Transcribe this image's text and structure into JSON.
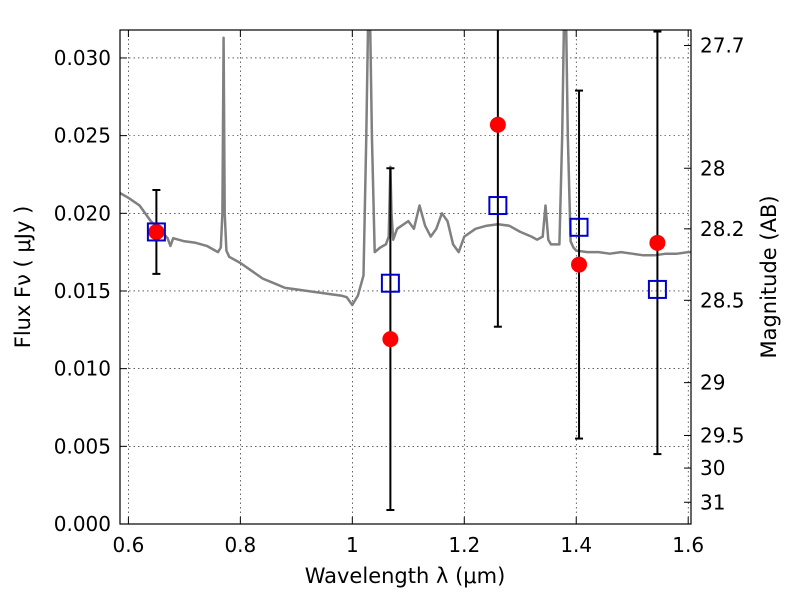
{
  "chart_data": {
    "type": "scatter",
    "xlabel": "Wavelength  λ (μm)",
    "ylabel": "Flux  Fν  ( μJy )",
    "y2label": "Magnitude (AB)",
    "xlim": [
      0.585,
      1.605
    ],
    "ylim": [
      0.0,
      0.0318
    ],
    "grid": true,
    "x_ticks": [
      {
        "v": 0.6,
        "label": "0.6"
      },
      {
        "v": 0.8,
        "label": "0.8"
      },
      {
        "v": 1.0,
        "label": "1"
      },
      {
        "v": 1.2,
        "label": "1.2"
      },
      {
        "v": 1.4,
        "label": "1.4"
      },
      {
        "v": 1.6,
        "label": "1.6"
      }
    ],
    "y_ticks": [
      {
        "v": 0.0,
        "label": "0.000"
      },
      {
        "v": 0.005,
        "label": "0.005"
      },
      {
        "v": 0.01,
        "label": "0.010"
      },
      {
        "v": 0.015,
        "label": "0.015"
      },
      {
        "v": 0.02,
        "label": "0.020"
      },
      {
        "v": 0.025,
        "label": "0.025"
      },
      {
        "v": 0.03,
        "label": "0.030"
      }
    ],
    "y2_ticks": [
      {
        "flux": 0.0308,
        "label": "27.7"
      },
      {
        "flux": 0.0229,
        "label": "28"
      },
      {
        "flux": 0.019,
        "label": "28.2"
      },
      {
        "flux": 0.0144,
        "label": "28.5"
      },
      {
        "flux": 0.0091,
        "label": "29"
      },
      {
        "flux": 0.0057,
        "label": "29.5"
      },
      {
        "flux": 0.0036,
        "label": "30"
      },
      {
        "flux": 0.0014,
        "label": "31"
      }
    ],
    "series": [
      {
        "kind": "line",
        "color": "#808080",
        "x": [
          0.585,
          0.6,
          0.62,
          0.64,
          0.66,
          0.67,
          0.675,
          0.68,
          0.7,
          0.72,
          0.74,
          0.75,
          0.76,
          0.765,
          0.768,
          0.77,
          0.772,
          0.775,
          0.78,
          0.8,
          0.82,
          0.84,
          0.86,
          0.88,
          0.9,
          0.92,
          0.94,
          0.96,
          0.98,
          0.99,
          1.0,
          1.01,
          1.02,
          1.025,
          1.028,
          1.032,
          1.035,
          1.04,
          1.05,
          1.06,
          1.065,
          1.068,
          1.07,
          1.073,
          1.08,
          1.1,
          1.11,
          1.12,
          1.13,
          1.14,
          1.15,
          1.16,
          1.17,
          1.18,
          1.19,
          1.2,
          1.22,
          1.24,
          1.26,
          1.28,
          1.3,
          1.32,
          1.33,
          1.34,
          1.345,
          1.35,
          1.355,
          1.37,
          1.375,
          1.378,
          1.382,
          1.385,
          1.39,
          1.395,
          1.4,
          1.42,
          1.44,
          1.46,
          1.48,
          1.5,
          1.52,
          1.54,
          1.56,
          1.58,
          1.6,
          1.605
        ],
        "y": [
          0.0213,
          0.021,
          0.0205,
          0.0195,
          0.0188,
          0.0184,
          0.0179,
          0.0184,
          0.0182,
          0.0181,
          0.0179,
          0.0177,
          0.0175,
          0.0178,
          0.02,
          0.0313,
          0.02,
          0.0176,
          0.0172,
          0.0168,
          0.0163,
          0.0158,
          0.0155,
          0.0152,
          0.0151,
          0.015,
          0.0149,
          0.0148,
          0.0147,
          0.0146,
          0.0141,
          0.0147,
          0.016,
          0.025,
          0.032,
          0.032,
          0.025,
          0.0175,
          0.0178,
          0.018,
          0.0185,
          0.023,
          0.02,
          0.0183,
          0.019,
          0.0195,
          0.019,
          0.0205,
          0.0192,
          0.0185,
          0.019,
          0.02,
          0.0195,
          0.018,
          0.0175,
          0.0185,
          0.019,
          0.0192,
          0.0193,
          0.0192,
          0.0188,
          0.0185,
          0.0183,
          0.0185,
          0.0205,
          0.0183,
          0.018,
          0.018,
          0.025,
          0.032,
          0.032,
          0.025,
          0.0182,
          0.0178,
          0.0176,
          0.0175,
          0.0175,
          0.0174,
          0.0175,
          0.0174,
          0.0173,
          0.0173,
          0.0174,
          0.0174,
          0.0175,
          0.0175
        ]
      },
      {
        "kind": "errorbar",
        "color": "#000000",
        "x": [
          0.65,
          1.068,
          1.26,
          1.405,
          1.545
        ],
        "center": [
          0.0188,
          0.0119,
          0.0257,
          0.0167,
          0.0181
        ],
        "yerr": [
          0.0027,
          0.011,
          0.013,
          0.0112,
          0.0136
        ]
      },
      {
        "kind": "points",
        "marker": "circle",
        "color": "#ff0000",
        "x": [
          0.65,
          1.068,
          1.26,
          1.405,
          1.545
        ],
        "y": [
          0.0188,
          0.0119,
          0.0257,
          0.0167,
          0.0181
        ]
      },
      {
        "kind": "points",
        "marker": "square",
        "color": "#0000cc",
        "x": [
          0.65,
          1.068,
          1.26,
          1.405,
          1.545
        ],
        "y": [
          0.0188,
          0.0155,
          0.0205,
          0.0191,
          0.0151
        ]
      }
    ]
  }
}
